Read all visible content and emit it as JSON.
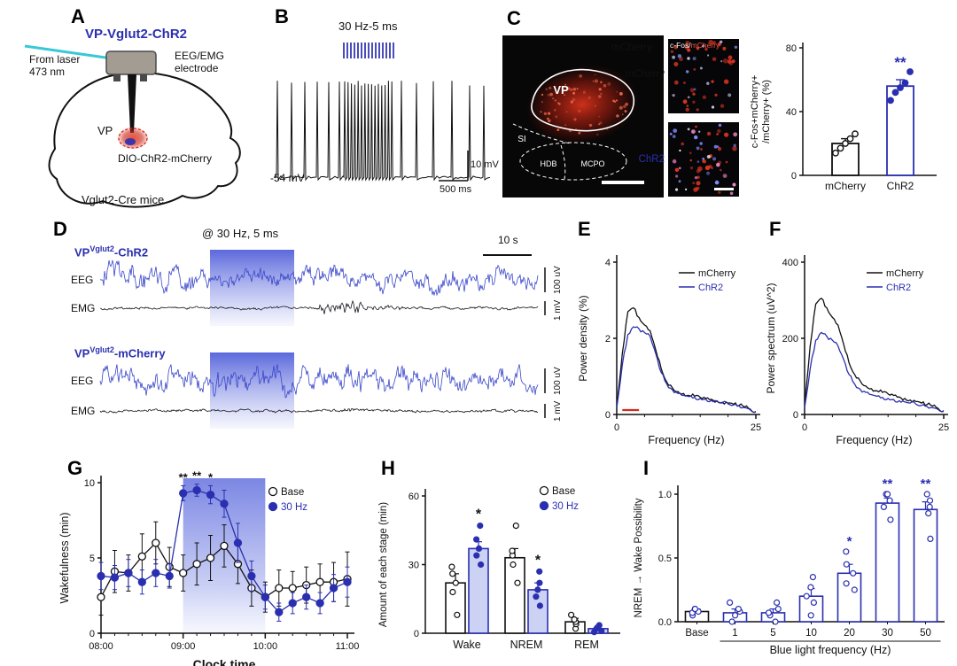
{
  "colors": {
    "blue": "#2a2fb0",
    "trace_blue": "#3a47c8",
    "red": "#d42b20",
    "bar_blue_fill": "#ccd2f4",
    "shade_blue": "#5a68dc"
  },
  "panelA": {
    "label": "A",
    "title": "VP-Vglut2-ChR2",
    "laser_line1": "From laser",
    "laser_line2": "473 nm",
    "electrode_line1": "EEG/EMG",
    "electrode_line2": "electrode",
    "vp_label": "VP",
    "virus_label": "DIO-ChR2-mCherry",
    "mouse_label": "Vglut2-Cre mice"
  },
  "panelB": {
    "label": "B",
    "stim_label": "30 Hz-5 ms",
    "membrane_potential": "-54 mV",
    "scale_voltage": "10 mV",
    "scale_time": "500 ms"
  },
  "panelC": {
    "label": "C",
    "image_label": "mCherry",
    "vp": "VP",
    "si": "SI",
    "hdb": "HDB",
    "mcpo": "MCPO",
    "inset_label_white": "c-Fos/",
    "inset_label_red": "mCherry",
    "inset_row1_label": "mCherry",
    "inset_row2_label": "ChR2"
  },
  "panelD": {
    "label": "D",
    "stim_label": "@ 30 Hz, 5 ms",
    "time_scale": "10 s",
    "block1_prefix": "VP",
    "block1_sup": "Vglut2",
    "block1_suffix": "-ChR2",
    "block2_prefix": "VP",
    "block2_sup": "Vglut2",
    "block2_suffix": "-mCherry",
    "eeg_label": "EEG",
    "emg_label": "EMG",
    "eeg_scale": "100 uV",
    "emg_scale": "1 mV"
  },
  "panelE": {
    "label": "E"
  },
  "panelF": {
    "label": "F"
  },
  "panelG": {
    "label": "G"
  },
  "panelH": {
    "label": "H"
  },
  "panelI": {
    "label": "I"
  },
  "chart_data": [
    {
      "id": "c_fos_bar",
      "type": "bar",
      "ylabel_line1": "c-Fos+mCherry+",
      "ylabel_line2": "/mCherry+ (%)",
      "ylim": [
        0,
        80
      ],
      "yticks": [
        0,
        40,
        80
      ],
      "categories": [
        "mCherry",
        "ChR2"
      ],
      "values": [
        20,
        56
      ],
      "errors": [
        3,
        4
      ],
      "points": [
        [
          14,
          17,
          20,
          23,
          26
        ],
        [
          47,
          52,
          55,
          58,
          65
        ]
      ],
      "sig": [
        "",
        "**"
      ],
      "bar_colors": [
        "#111111",
        "#2a2fb0"
      ]
    },
    {
      "id": "power_density",
      "type": "line",
      "ylabel": "Power density (%)",
      "xlabel": "Frequency (Hz)",
      "ylim": [
        0,
        4
      ],
      "xlim": [
        0,
        25
      ],
      "yticks": [
        0,
        2,
        4
      ],
      "xticks": [
        0,
        25
      ],
      "legend_position": "top-right",
      "x": [
        0,
        1,
        2,
        3,
        4,
        5,
        6,
        7,
        8,
        9,
        10,
        11,
        12,
        13,
        14,
        15,
        16,
        17,
        18,
        19,
        20,
        21,
        22,
        23,
        24,
        25
      ],
      "series": [
        {
          "name": "mCherry",
          "color": "#111111",
          "y": [
            0.2,
            1.6,
            2.7,
            2.8,
            2.55,
            2.35,
            2.2,
            1.7,
            1.2,
            0.85,
            0.7,
            0.6,
            0.55,
            0.5,
            0.48,
            0.45,
            0.42,
            0.4,
            0.36,
            0.32,
            0.3,
            0.27,
            0.24,
            0.2,
            0.14,
            0.08
          ]
        },
        {
          "name": "ChR2",
          "color": "#2a2fb0",
          "y": [
            0.18,
            1.3,
            2.1,
            2.3,
            2.25,
            2.15,
            2.05,
            1.6,
            1.1,
            0.8,
            0.65,
            0.55,
            0.5,
            0.47,
            0.45,
            0.42,
            0.4,
            0.37,
            0.34,
            0.3,
            0.28,
            0.25,
            0.22,
            0.18,
            0.12,
            0.06
          ]
        }
      ],
      "sig_bar": {
        "x1": 1,
        "x2": 4,
        "color": "#d42b20"
      }
    },
    {
      "id": "power_spectrum",
      "type": "line",
      "ylabel": "Power spectrum (uV^2)",
      "xlabel": "Frequency (Hz)",
      "ylim": [
        0,
        400
      ],
      "xlim": [
        0,
        25
      ],
      "yticks": [
        0,
        200,
        400
      ],
      "xticks": [
        0,
        25
      ],
      "legend_position": "top-right",
      "x": [
        0,
        1,
        2,
        3,
        4,
        5,
        6,
        7,
        8,
        9,
        10,
        11,
        12,
        13,
        14,
        15,
        16,
        17,
        18,
        19,
        20,
        21,
        22,
        23,
        24,
        25
      ],
      "series": [
        {
          "name": "mCherry",
          "color": "#111111",
          "y": [
            25,
            180,
            290,
            305,
            280,
            255,
            235,
            185,
            135,
            105,
            88,
            75,
            68,
            62,
            58,
            54,
            50,
            46,
            42,
            38,
            34,
            30,
            26,
            22,
            16,
            10
          ]
        },
        {
          "name": "ChR2",
          "color": "#2a2fb0",
          "y": [
            18,
            120,
            195,
            215,
            205,
            195,
            180,
            145,
            105,
            80,
            66,
            58,
            52,
            48,
            45,
            42,
            39,
            36,
            33,
            30,
            27,
            24,
            21,
            18,
            13,
            8
          ]
        }
      ]
    },
    {
      "id": "wakefulness_timecourse",
      "type": "line",
      "ylabel": "Wakefulness (min)",
      "xlabel": "Clock time",
      "ylim": [
        0,
        10
      ],
      "yticks": [
        0,
        5,
        10
      ],
      "xtick_labels": [
        "08:00",
        "09:00",
        "10:00",
        "11:00"
      ],
      "xtick_positions": [
        0,
        6,
        12,
        18
      ],
      "n_points": 19,
      "shade_range": [
        6,
        12
      ],
      "legend": [
        "Base",
        "30 Hz"
      ],
      "series": [
        {
          "name": "Base",
          "marker": "open",
          "color": "#111111",
          "values": [
            2.4,
            4.1,
            4.0,
            5.1,
            6.0,
            4.4,
            4.0,
            4.6,
            5.0,
            5.8,
            4.6,
            3.0,
            2.4,
            3.0,
            3.0,
            3.2,
            3.4,
            3.4,
            3.6
          ],
          "errors": [
            1.2,
            1.4,
            1.2,
            1.5,
            1.4,
            1.3,
            1.2,
            1.4,
            1.5,
            1.4,
            1.3,
            1.2,
            1.0,
            1.2,
            1.1,
            1.2,
            1.2,
            1.3,
            1.8
          ]
        },
        {
          "name": "30 Hz",
          "marker": "filled",
          "color": "#2a2fb0",
          "values": [
            3.8,
            3.7,
            4.0,
            3.4,
            4.0,
            3.8,
            9.3,
            9.5,
            9.2,
            8.6,
            6.0,
            3.8,
            2.4,
            1.4,
            2.0,
            2.4,
            2.0,
            3.0,
            3.4
          ],
          "errors": [
            0.9,
            0.8,
            0.9,
            0.8,
            0.9,
            0.8,
            0.5,
            0.4,
            0.6,
            0.9,
            1.3,
            1.0,
            0.8,
            0.6,
            0.7,
            0.8,
            0.7,
            0.9,
            1.0
          ]
        }
      ],
      "sig_marks": [
        {
          "index": 6,
          "text": "**"
        },
        {
          "index": 7,
          "text": "**"
        },
        {
          "index": 8,
          "text": "*"
        }
      ]
    },
    {
      "id": "stage_amount",
      "type": "grouped_bar",
      "ylabel": "Amount of each stage (min)",
      "ylim": [
        0,
        60
      ],
      "yticks": [
        0,
        30,
        60
      ],
      "categories": [
        "Wake",
        "NREM",
        "REM"
      ],
      "legend": [
        "Base",
        "30 Hz"
      ],
      "series": [
        {
          "name": "Base",
          "values": [
            22,
            33,
            5
          ],
          "errors": [
            4,
            4,
            1.5
          ],
          "points": [
            [
              8,
              18,
              22,
              26,
              29
            ],
            [
              22,
              30,
              34,
              36,
              47
            ],
            [
              2,
              4,
              5,
              6,
              8
            ]
          ]
        },
        {
          "name": "30 Hz",
          "values": [
            37,
            19,
            2
          ],
          "errors": [
            3,
            3,
            1
          ],
          "points": [
            [
              30,
              34,
              37,
              41,
              47
            ],
            [
              12,
              16,
              19,
              22,
              27
            ],
            [
              0.5,
              1,
              2,
              2.5,
              3.5
            ]
          ]
        }
      ],
      "sig": [
        {
          "category": "Wake",
          "text": "*"
        },
        {
          "category": "NREM",
          "text": "*"
        }
      ]
    },
    {
      "id": "nrem_wake_possibility",
      "type": "bar",
      "ylabel": "NREM → Wake Possibility",
      "xlabel": "Blue light frequency (Hz)",
      "ylim": [
        0,
        1.0
      ],
      "yticks": [
        0.0,
        0.5,
        1.0
      ],
      "categories": [
        "Base",
        "1",
        "5",
        "10",
        "20",
        "30",
        "50"
      ],
      "values": [
        0.08,
        0.07,
        0.07,
        0.2,
        0.38,
        0.93,
        0.88
      ],
      "errors": [
        0.02,
        0.03,
        0.03,
        0.06,
        0.07,
        0.04,
        0.06
      ],
      "points": [
        [
          0.05,
          0.07,
          0.08,
          0.1,
          0.1
        ],
        [
          0.0,
          0.05,
          0.08,
          0.1,
          0.15
        ],
        [
          0.0,
          0.05,
          0.07,
          0.1,
          0.15
        ],
        [
          0.05,
          0.15,
          0.2,
          0.27,
          0.35
        ],
        [
          0.25,
          0.3,
          0.38,
          0.45,
          0.55
        ],
        [
          0.8,
          0.9,
          0.95,
          1.0,
          1.0
        ],
        [
          0.65,
          0.85,
          0.9,
          0.95,
          1.0
        ]
      ],
      "sig": [
        "",
        "",
        "",
        "",
        "*",
        "**",
        "**"
      ]
    }
  ]
}
